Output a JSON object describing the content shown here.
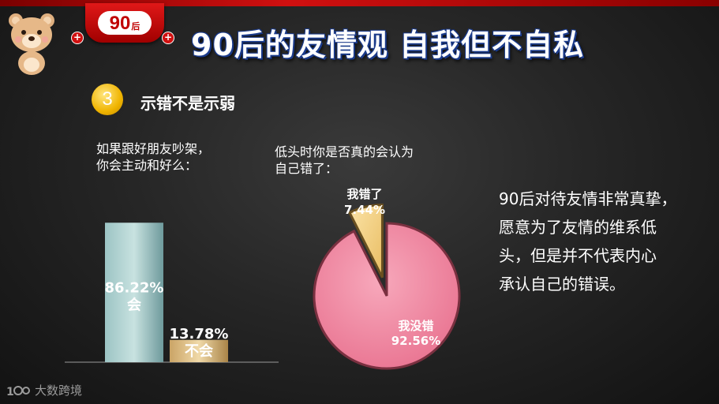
{
  "header": {
    "tab_label_num": "90",
    "tab_label_suffix": "后",
    "title": "90后的友情观 自我但不自私"
  },
  "section": {
    "number": "3",
    "heading": "示错不是示弱"
  },
  "questions": {
    "q1_line1": "如果跟好朋友吵架，",
    "q1_line2": "你会主动和好么：",
    "q2_line1": "低头时你是否真的会认为",
    "q2_line2": "自己错了："
  },
  "conclusion": {
    "line1": "90后对待友情非常真挚，",
    "line2": "愿意为了友情的维系低",
    "line3": "头，但是并不代表内心",
    "line4": "承认自己的错误。"
  },
  "footer": {
    "logo_text": "大数跨境"
  },
  "chart_data": [
    {
      "type": "bar",
      "categories": [
        "会",
        "不会"
      ],
      "values": [
        86.22,
        13.78
      ],
      "value_labels": [
        "86.22%",
        "13.78%"
      ],
      "ylim": [
        0,
        100
      ],
      "colors": [
        "#a8cccc",
        "#d8b67a"
      ]
    },
    {
      "type": "pie",
      "labels": [
        "我没错",
        "我错了"
      ],
      "values": [
        92.56,
        7.44
      ],
      "value_labels": [
        "92.56%",
        "7.44%"
      ],
      "colors": [
        "#f08aa4",
        "#f6d58a"
      ]
    }
  ]
}
